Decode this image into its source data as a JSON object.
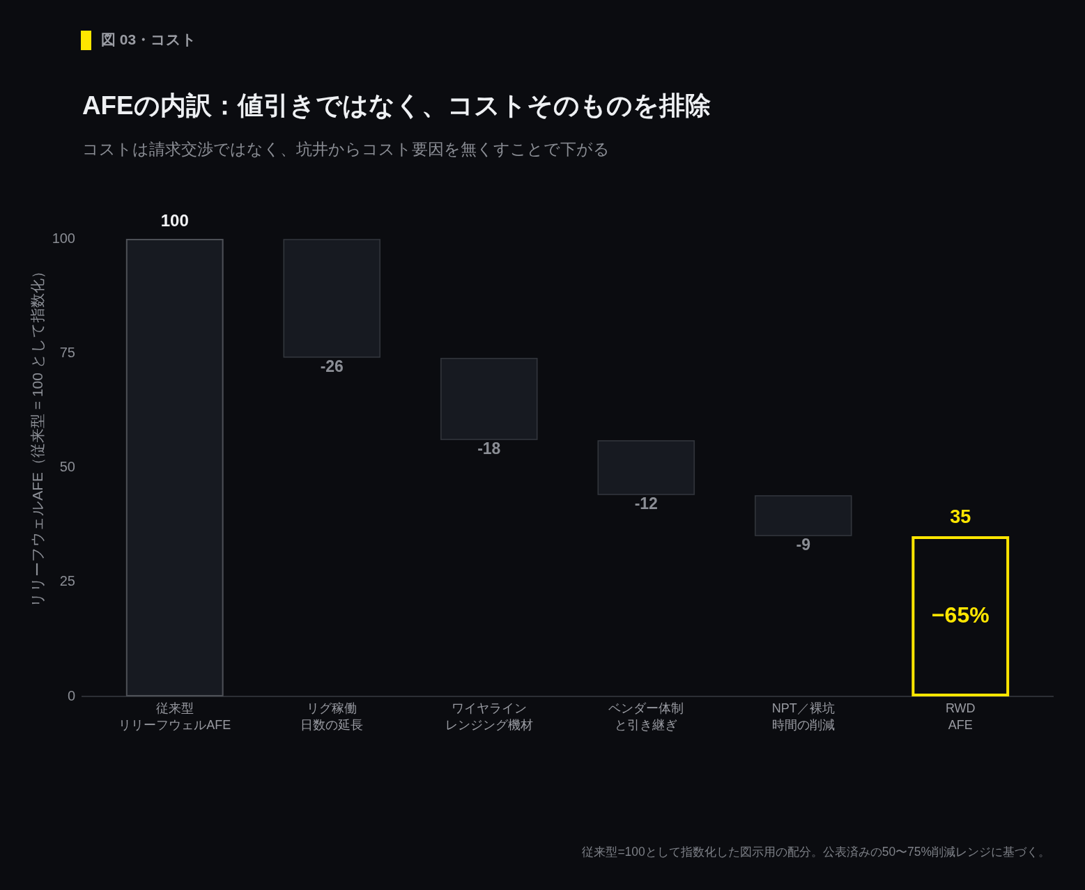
{
  "chart_data": {
    "type": "bar",
    "title": "AFEの内訳：値引きではなく、コストそのものを排除",
    "subtitle": "コストは請求交渉ではなく、坑井からコスト要因を無くすことで下がる",
    "ylabel": "リリーフウェルAFE（従来型 = 100 として指数化）",
    "categories": [
      "従来型リリーフウェルAFE",
      "リグ稼働日数の延長",
      "ワイヤラインレンジング機材",
      "ベンダー体制と引き継ぎ",
      "NPT／裸坑時間の削減",
      "RWD AFE"
    ],
    "values": [
      100,
      -26,
      -18,
      -12,
      -9,
      35
    ],
    "base": [
      0,
      100,
      74,
      56,
      44,
      0
    ],
    "colors": [
      "#171a21",
      "#171a21",
      "#171a21",
      "#171a21",
      "#171a21",
      "#ffe600"
    ],
    "ylim": [
      0,
      100
    ],
    "yticks": [
      0,
      25,
      50,
      75,
      100
    ],
    "data_labels": true,
    "grid": false,
    "legend": false,
    "annotations": [
      "図 03・コスト",
      "−65%",
      "従来型=100として指数化した図示用の配分。公表済みの50〜75%削減レンジに基づく。"
    ]
  }
}
